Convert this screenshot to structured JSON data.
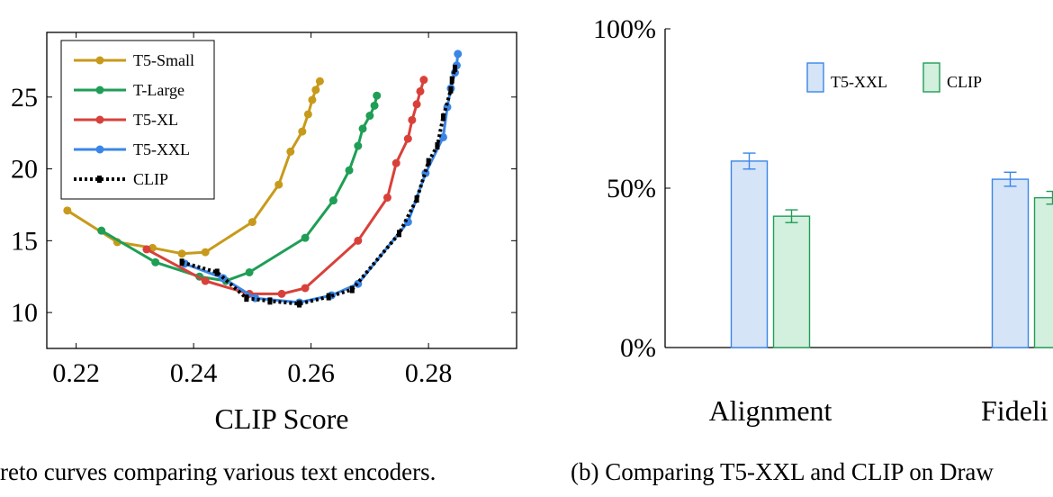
{
  "chart_data": [
    {
      "type": "line",
      "xlabel": "CLIP Score",
      "ylabel": "",
      "xlim": [
        0.215,
        0.295
      ],
      "ylim": [
        7.5,
        29.5
      ],
      "x_ticks": [
        0.22,
        0.24,
        0.26,
        0.28
      ],
      "x_tick_labels": [
        "0.22",
        "0.24",
        "0.26",
        "0.28"
      ],
      "y_ticks": [
        10,
        15,
        20,
        25
      ],
      "y_tick_labels": [
        "10",
        "15",
        "20",
        "25"
      ],
      "legend_position": "top-left",
      "caption": "reto curves comparing various text encoders.",
      "series": [
        {
          "name": "T5-Small",
          "color": "#c89a1b",
          "style": "solid",
          "points": [
            [
              0.2185,
              17.1
            ],
            [
              0.227,
              14.9
            ],
            [
              0.233,
              14.5
            ],
            [
              0.238,
              14.1
            ],
            [
              0.242,
              14.2
            ],
            [
              0.25,
              16.3
            ],
            [
              0.2545,
              18.9
            ],
            [
              0.2565,
              21.2
            ],
            [
              0.2585,
              22.6
            ],
            [
              0.2595,
              23.8
            ],
            [
              0.2602,
              24.8
            ],
            [
              0.2608,
              25.5
            ],
            [
              0.2615,
              26.1
            ]
          ]
        },
        {
          "name": "T-Large",
          "color": "#1f9e56",
          "style": "solid",
          "points": [
            [
              0.2243,
              15.7
            ],
            [
              0.2335,
              13.5
            ],
            [
              0.241,
              12.5
            ],
            [
              0.2455,
              12.2
            ],
            [
              0.2495,
              12.8
            ],
            [
              0.259,
              15.2
            ],
            [
              0.2638,
              17.8
            ],
            [
              0.2665,
              19.9
            ],
            [
              0.268,
              21.6
            ],
            [
              0.2688,
              22.8
            ],
            [
              0.27,
              23.7
            ],
            [
              0.2708,
              24.4
            ],
            [
              0.2712,
              25.1
            ]
          ]
        },
        {
          "name": "T5-XL",
          "color": "#d8413a",
          "style": "solid",
          "points": [
            [
              0.232,
              14.4
            ],
            [
              0.242,
              12.2
            ],
            [
              0.2495,
              11.3
            ],
            [
              0.255,
              11.3
            ],
            [
              0.259,
              11.7
            ],
            [
              0.268,
              15.0
            ],
            [
              0.273,
              18.0
            ],
            [
              0.2745,
              20.4
            ],
            [
              0.2765,
              22.1
            ],
            [
              0.2772,
              23.4
            ],
            [
              0.278,
              24.5
            ],
            [
              0.2786,
              25.4
            ],
            [
              0.2792,
              26.2
            ]
          ]
        },
        {
          "name": "T5-XXL",
          "color": "#3a86e6",
          "style": "solid",
          "points": [
            [
              0.2385,
              13.4
            ],
            [
              0.245,
              12.4
            ],
            [
              0.2505,
              11.0
            ],
            [
              0.258,
              10.7
            ],
            [
              0.2635,
              11.2
            ],
            [
              0.268,
              12.0
            ],
            [
              0.2765,
              16.3
            ],
            [
              0.2795,
              19.7
            ],
            [
              0.2825,
              22.2
            ],
            [
              0.2832,
              24.3
            ],
            [
              0.2838,
              25.6
            ],
            [
              0.2845,
              26.7
            ],
            [
              0.2848,
              27.2
            ],
            [
              0.285,
              28.0
            ]
          ]
        },
        {
          "name": "CLIP",
          "color": "#000000",
          "style": "dotted",
          "points": [
            [
              0.238,
              13.5
            ],
            [
              0.244,
              12.8
            ],
            [
              0.249,
              11.0
            ],
            [
              0.253,
              10.8
            ],
            [
              0.258,
              10.6
            ],
            [
              0.263,
              11.1
            ],
            [
              0.267,
              11.6
            ],
            [
              0.275,
              15.5
            ],
            [
              0.278,
              17.9
            ],
            [
              0.28,
              20.5
            ],
            [
              0.2815,
              21.6
            ],
            [
              0.2825,
              23.6
            ],
            [
              0.2838,
              25.5
            ],
            [
              0.284,
              26.2
            ],
            [
              0.2845,
              27.0
            ]
          ]
        }
      ]
    },
    {
      "type": "bar",
      "categories": [
        "Alignment",
        "Fideli"
      ],
      "ylim": [
        0,
        100
      ],
      "y_ticks": [
        0,
        50,
        100
      ],
      "y_tick_labels": [
        "0%",
        "50%",
        "100%"
      ],
      "legend_position": "top",
      "caption": "(b) Comparing T5-XXL and CLIP on Draw",
      "series": [
        {
          "name": "T5-XXL",
          "color": "#3a86e6",
          "fill": "#d6e4f8",
          "values": [
            58.5,
            52.8
          ],
          "errors": [
            2.5,
            2.2
          ]
        },
        {
          "name": "CLIP",
          "color": "#1f9e56",
          "fill": "#d3efde",
          "values": [
            41.2,
            47.0
          ],
          "errors": [
            2.0,
            2.0
          ]
        }
      ]
    }
  ]
}
